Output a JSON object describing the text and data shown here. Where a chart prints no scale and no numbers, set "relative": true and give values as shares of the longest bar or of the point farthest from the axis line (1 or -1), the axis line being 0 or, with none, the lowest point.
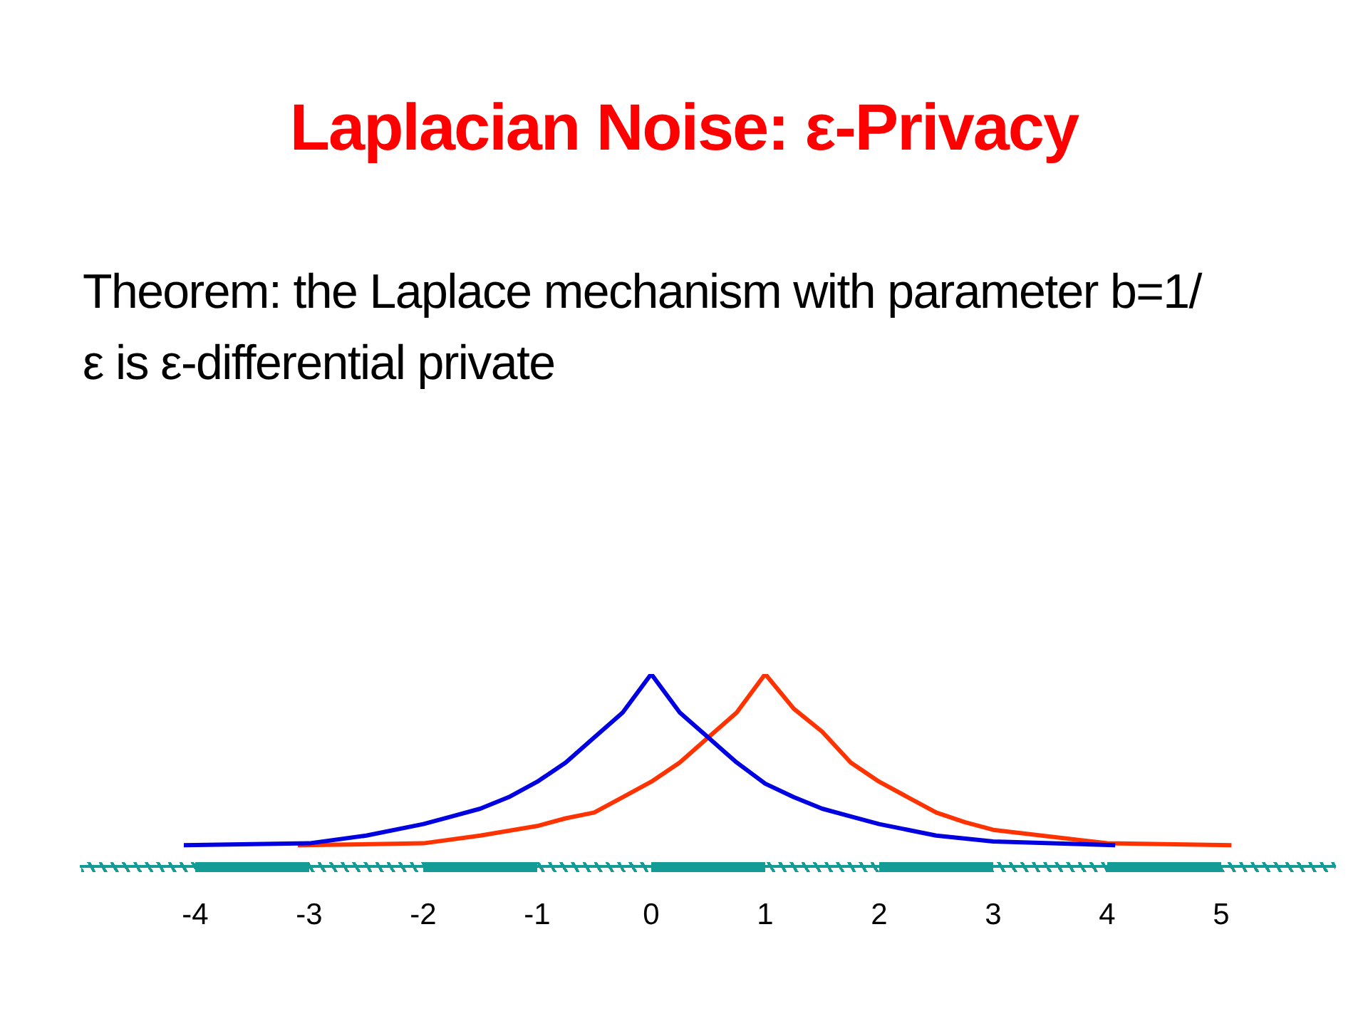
{
  "chart_data": {
    "type": "line",
    "title": "Laplacian Noise: ε-Privacy",
    "subtitle": "Theorem: the Laplace mechanism with parameter b=1/ε is ε-differential private",
    "relative": true,
    "xlim": [
      -5,
      6
    ],
    "xticks": [
      -4,
      -3,
      -2,
      -1,
      0,
      1,
      2,
      3,
      4,
      5
    ],
    "grid": false,
    "legend": false,
    "marker": "none",
    "line_style": "solid",
    "series": [
      {
        "color": "#0000e0",
        "x": [
          -4.1,
          -3,
          -2.5,
          -2,
          -1.75,
          -1.5,
          -1.25,
          -1,
          -0.75,
          -0.5,
          -0.25,
          0,
          0.25,
          0.5,
          0.75,
          1,
          1.25,
          1.5,
          1.75,
          2,
          2.5,
          3,
          4.07
        ],
        "values": [
          0.11,
          0.12,
          0.16,
          0.22,
          0.26,
          0.3,
          0.36,
          0.44,
          0.54,
          0.67,
          0.8,
          1,
          0.8,
          0.67,
          0.54,
          0.43,
          0.36,
          0.3,
          0.26,
          0.22,
          0.16,
          0.13,
          0.11
        ]
      },
      {
        "color": "#ff3300",
        "x": [
          -3.1,
          -2,
          -1.5,
          -1,
          -0.75,
          -0.5,
          -0.25,
          0,
          0.25,
          0.5,
          0.75,
          1,
          1.25,
          1.5,
          1.75,
          2,
          2.25,
          2.5,
          2.75,
          3,
          4,
          5.09
        ],
        "values": [
          0.11,
          0.12,
          0.16,
          0.21,
          0.25,
          0.28,
          0.36,
          0.44,
          0.54,
          0.67,
          0.8,
          1,
          0.82,
          0.7,
          0.54,
          0.44,
          0.36,
          0.28,
          0.23,
          0.19,
          0.12,
          0.11
        ]
      }
    ]
  }
}
